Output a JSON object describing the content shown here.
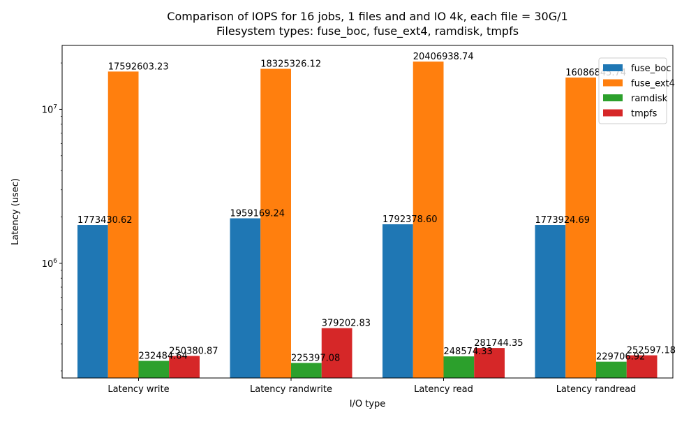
{
  "chart_data": {
    "type": "bar",
    "title": "Comparison of IOPS for 16 jobs, 1 files and  and IO 4k, each file = 30G/1",
    "subtitle": "Filesystem types: fuse_boc, fuse_ext4, ramdisk, tmpfs",
    "xlabel": "I/O type",
    "ylabel": "Latency (usec)",
    "yscale": "log",
    "ylim": [
      180000,
      26000000
    ],
    "ytick_labels": [
      {
        "value": 1000000,
        "base": "10",
        "exp": "6"
      },
      {
        "value": 10000000,
        "base": "10",
        "exp": "7"
      }
    ],
    "categories": [
      "Latency write",
      "Latency randwrite",
      "Latency read",
      "Latency randread"
    ],
    "series": [
      {
        "name": "fuse_boc",
        "color": "#1f77b4",
        "values": [
          1773430.62,
          1959169.24,
          1792378.6,
          1773924.69
        ],
        "labels": [
          "1773430.62",
          "1959169.24",
          "1792378.60",
          "1773924.69"
        ]
      },
      {
        "name": "fuse_ext4",
        "color": "#ff7f0e",
        "values": [
          17592603.23,
          18325326.12,
          20406938.74,
          16086845.74
        ],
        "labels": [
          "17592603.23",
          "18325326.12",
          "20406938.74",
          "16086845.74"
        ]
      },
      {
        "name": "ramdisk",
        "color": "#2ca02c",
        "values": [
          232484.64,
          225397.08,
          248574.33,
          229706.92
        ],
        "labels": [
          "232484.64",
          "225397.08",
          "248574.33",
          "229706.92"
        ]
      },
      {
        "name": "tmpfs",
        "color": "#d62728",
        "values": [
          250380.87,
          379202.83,
          281744.35,
          252597.18
        ],
        "labels": [
          "250380.87",
          "379202.83",
          "281744.35",
          "252597.18"
        ]
      }
    ],
    "legend": "top-right",
    "grid": false
  }
}
